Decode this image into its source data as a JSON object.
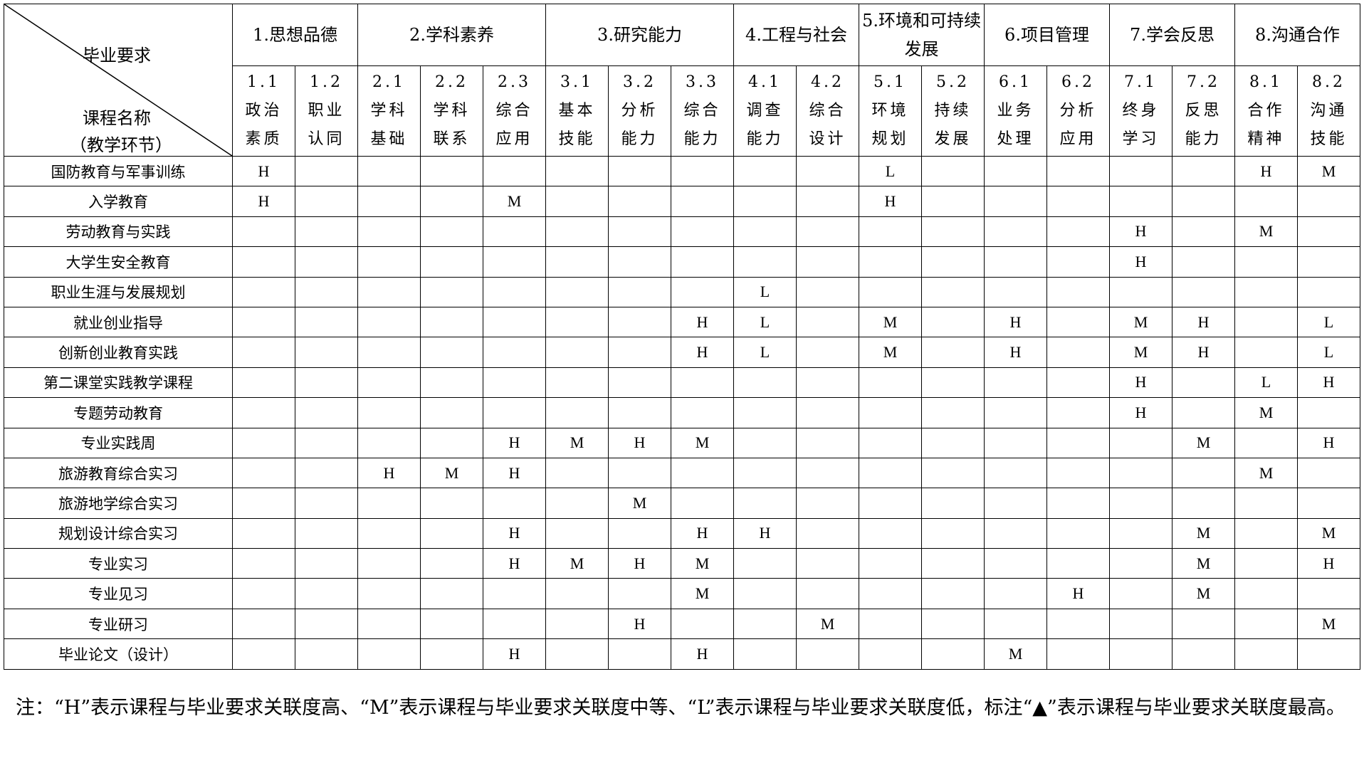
{
  "corner": {
    "top": "毕业要求",
    "bottom1": "课程名称",
    "bottom2": "（教学环节）"
  },
  "groups": [
    {
      "label": "1.思想品德",
      "span": 2
    },
    {
      "label": "2.学科素养",
      "span": 3
    },
    {
      "label": "3.研究能力",
      "span": 3
    },
    {
      "label": "4.工程与社会",
      "span": 2
    },
    {
      "label": "5.环境和可持续发展",
      "span": 2
    },
    {
      "label": "6.项目管理",
      "span": 2
    },
    {
      "label": "7.学会反思",
      "span": 2
    },
    {
      "label": "8.沟通合作",
      "span": 2
    }
  ],
  "subs": [
    {
      "num": "1.1",
      "l1": "政治",
      "l2": "素质"
    },
    {
      "num": "1.2",
      "l1": "职业",
      "l2": "认同"
    },
    {
      "num": "2.1",
      "l1": "学科",
      "l2": "基础"
    },
    {
      "num": "2.2",
      "l1": "学科",
      "l2": "联系"
    },
    {
      "num": "2.3",
      "l1": "综合",
      "l2": "应用"
    },
    {
      "num": "3.1",
      "l1": "基本",
      "l2": "技能"
    },
    {
      "num": "3.2",
      "l1": "分析",
      "l2": "能力"
    },
    {
      "num": "3.3",
      "l1": "综合",
      "l2": "能力"
    },
    {
      "num": "4.1",
      "l1": "调查",
      "l2": "能力"
    },
    {
      "num": "4.2",
      "l1": "综合",
      "l2": "设计"
    },
    {
      "num": "5.1",
      "l1": "环境",
      "l2": "规划"
    },
    {
      "num": "5.2",
      "l1": "持续",
      "l2": "发展"
    },
    {
      "num": "6.1",
      "l1": "业务",
      "l2": "处理"
    },
    {
      "num": "6.2",
      "l1": "分析",
      "l2": "应用"
    },
    {
      "num": "7.1",
      "l1": "终身",
      "l2": "学习"
    },
    {
      "num": "7.2",
      "l1": "反思",
      "l2": "能力"
    },
    {
      "num": "8.1",
      "l1": "合作",
      "l2": "精神"
    },
    {
      "num": "8.2",
      "l1": "沟通",
      "l2": "技能"
    }
  ],
  "rows": [
    {
      "course": "国防教育与军事训练",
      "cells": [
        "H",
        "",
        "",
        "",
        "",
        "",
        "",
        "",
        "",
        "",
        "L",
        "",
        "",
        "",
        "",
        "",
        "H",
        "M"
      ]
    },
    {
      "course": "入学教育",
      "cells": [
        "H",
        "",
        "",
        "",
        "M",
        "",
        "",
        "",
        "",
        "",
        "H",
        "",
        "",
        "",
        "",
        "",
        "",
        ""
      ]
    },
    {
      "course": "劳动教育与实践",
      "cells": [
        "",
        "",
        "",
        "",
        "",
        "",
        "",
        "",
        "",
        "",
        "",
        "",
        "",
        "",
        "H",
        "",
        "M",
        ""
      ]
    },
    {
      "course": "大学生安全教育",
      "cells": [
        "",
        "",
        "",
        "",
        "",
        "",
        "",
        "",
        "",
        "",
        "",
        "",
        "",
        "",
        "H",
        "",
        "",
        ""
      ]
    },
    {
      "course": "职业生涯与发展规划",
      "cells": [
        "",
        "",
        "",
        "",
        "",
        "",
        "",
        "",
        "L",
        "",
        "",
        "",
        "",
        "",
        "",
        "",
        "",
        ""
      ]
    },
    {
      "course": "就业创业指导",
      "cells": [
        "",
        "",
        "",
        "",
        "",
        "",
        "",
        "H",
        "L",
        "",
        "M",
        "",
        "H",
        "",
        "M",
        "H",
        "",
        "L"
      ]
    },
    {
      "course": "创新创业教育实践",
      "cells": [
        "",
        "",
        "",
        "",
        "",
        "",
        "",
        "H",
        "L",
        "",
        "M",
        "",
        "H",
        "",
        "M",
        "H",
        "",
        "L"
      ]
    },
    {
      "course": "第二课堂实践教学课程",
      "cells": [
        "",
        "",
        "",
        "",
        "",
        "",
        "",
        "",
        "",
        "",
        "",
        "",
        "",
        "",
        "H",
        "",
        "L",
        "H"
      ]
    },
    {
      "course": "专题劳动教育",
      "cells": [
        "",
        "",
        "",
        "",
        "",
        "",
        "",
        "",
        "",
        "",
        "",
        "",
        "",
        "",
        "H",
        "",
        "M",
        ""
      ]
    },
    {
      "course": "专业实践周",
      "cells": [
        "",
        "",
        "",
        "",
        "H",
        "M",
        "H",
        "M",
        "",
        "",
        "",
        "",
        "",
        "",
        "",
        "M",
        "",
        "H"
      ]
    },
    {
      "course": "旅游教育综合实习",
      "cells": [
        "",
        "",
        "H",
        "M",
        "H",
        "",
        "",
        "",
        "",
        "",
        "",
        "",
        "",
        "",
        "",
        "",
        "M",
        ""
      ]
    },
    {
      "course": "旅游地学综合实习",
      "cells": [
        "",
        "",
        "",
        "",
        "",
        "",
        "M",
        "",
        "",
        "",
        "",
        "",
        "",
        "",
        "",
        "",
        "",
        ""
      ]
    },
    {
      "course": "规划设计综合实习",
      "cells": [
        "",
        "",
        "",
        "",
        "H",
        "",
        "",
        "H",
        "H",
        "",
        "",
        "",
        "",
        "",
        "",
        "M",
        "",
        "M"
      ]
    },
    {
      "course": "专业实习",
      "cells": [
        "",
        "",
        "",
        "",
        "H",
        "M",
        "H",
        "M",
        "",
        "",
        "",
        "",
        "",
        "",
        "",
        "M",
        "",
        "H"
      ]
    },
    {
      "course": "专业见习",
      "cells": [
        "",
        "",
        "",
        "",
        "",
        "",
        "",
        "M",
        "",
        "",
        "",
        "",
        "",
        "H",
        "",
        "M",
        "",
        ""
      ]
    },
    {
      "course": "专业研习",
      "cells": [
        "",
        "",
        "",
        "",
        "",
        "",
        "H",
        "",
        "",
        "M",
        "",
        "",
        "",
        "",
        "",
        "",
        "",
        "M"
      ]
    },
    {
      "course": "毕业论文（设计）",
      "cells": [
        "",
        "",
        "",
        "",
        "H",
        "",
        "",
        "H",
        "",
        "",
        "",
        "",
        "M",
        "",
        "",
        "",
        "",
        ""
      ]
    }
  ],
  "note": "注：“H”表示课程与毕业要求关联度高、“M”表示课程与毕业要求关联度中等、“L”表示课程与毕业要求关联度低，标注“▲”表示课程与毕业要求关联度最高。"
}
